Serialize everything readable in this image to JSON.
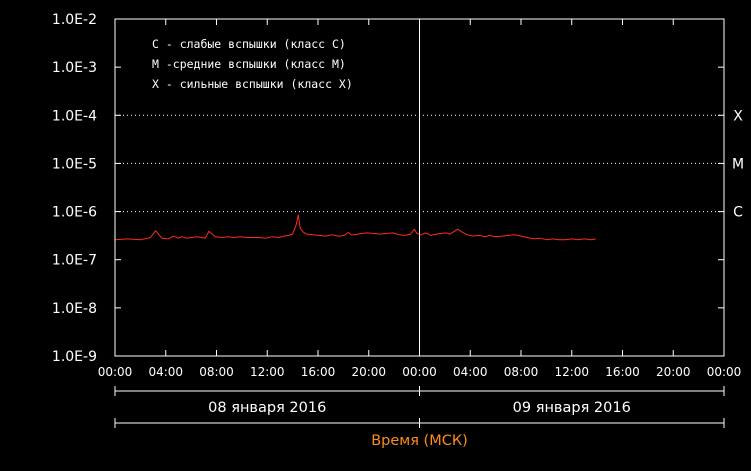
{
  "colors": {
    "background": "#000000",
    "axes": "#ffffff",
    "series": "#ff2a1a",
    "xlabel": "#ff8c1a"
  },
  "chart_data": {
    "type": "line",
    "title": "",
    "xlabel": "Время (МСК)",
    "ylabel": "",
    "y_scale": "log",
    "ylim": [
      "1.0E-9",
      "1.0E-2"
    ],
    "y_ticks": [
      "1.0E-2",
      "1.0E-3",
      "1.0E-4",
      "1.0E-5",
      "1.0E-6",
      "1.0E-7",
      "1.0E-8",
      "1.0E-9"
    ],
    "x_ticks": [
      "00:00",
      "04:00",
      "08:00",
      "12:00",
      "16:00",
      "20:00",
      "00:00",
      "04:00",
      "08:00",
      "12:00",
      "16:00",
      "20:00",
      "00:00"
    ],
    "x_range_hours": [
      0,
      48
    ],
    "days": [
      {
        "label": "08 января 2016",
        "start_hour": 0,
        "end_hour": 24
      },
      {
        "label": "09 января 2016",
        "start_hour": 24,
        "end_hour": 48
      }
    ],
    "divider_hour": 24,
    "class_lines": [
      {
        "label": "X",
        "value": 0.0001
      },
      {
        "label": "M",
        "value": 1e-05
      },
      {
        "label": "C",
        "value": 1e-06
      }
    ],
    "legend": {
      "placement": "top-left",
      "entries": [
        "C - слабые вспышки (класс C)",
        "M -средние вспышки (класс M)",
        "X - сильные вспышки (класс X)"
      ]
    },
    "series": [
      {
        "x": [
          0,
          1,
          2,
          2.8,
          3.2,
          3.7,
          4.2,
          4.6,
          5,
          5.3,
          5.6,
          6,
          6.5,
          7.1,
          7.4,
          7.9,
          8.4,
          8.9,
          9.4,
          9.9,
          10.4,
          10.9,
          11.4,
          11.9,
          12.4,
          12.9,
          13.3,
          13.7,
          14,
          14.25,
          14.45,
          14.6,
          14.8,
          15.1,
          15.6,
          16.1,
          16.6,
          17.1,
          17.6,
          18.1,
          18.4,
          18.6,
          18.9,
          19.4,
          19.9,
          20.4,
          20.9,
          21.4,
          21.9,
          22.4,
          22.9,
          23.3,
          23.6,
          23.8,
          24.1,
          24.5,
          24.9,
          25.3,
          25.7,
          26.1,
          26.4,
          26.7,
          27,
          27.4,
          27.8,
          28.2,
          28.7,
          29.2,
          29.5,
          29.9,
          30.5,
          31,
          31.5,
          32,
          32.5,
          33,
          33.5,
          34,
          34.5,
          35,
          35.5,
          36,
          36.5,
          37,
          37.5,
          37.9
        ],
        "values": [
          2.6e-07,
          2.7e-07,
          2.6e-07,
          2.9e-07,
          4e-07,
          2.8e-07,
          2.7e-07,
          3.1e-07,
          2.8e-07,
          3e-07,
          2.8e-07,
          2.9e-07,
          3e-07,
          2.8e-07,
          3.9e-07,
          3e-07,
          2.9e-07,
          3e-07,
          2.9e-07,
          3e-07,
          2.9e-07,
          2.9e-07,
          2.9e-07,
          2.8e-07,
          3e-07,
          2.9e-07,
          3.1e-07,
          3.2e-07,
          3.4e-07,
          5e-07,
          8.5e-07,
          4.5e-07,
          3.8e-07,
          3.4e-07,
          3.3e-07,
          3.2e-07,
          3.1e-07,
          3.3e-07,
          3.1e-07,
          3.2e-07,
          3.7e-07,
          3.3e-07,
          3.3e-07,
          3.5e-07,
          3.6e-07,
          3.5e-07,
          3.4e-07,
          3.5e-07,
          3.6e-07,
          3.3e-07,
          3.2e-07,
          3.4e-07,
          4.3e-07,
          3.5e-07,
          3.3e-07,
          3.6e-07,
          3.2e-07,
          3.4e-07,
          3.5e-07,
          3.6e-07,
          3.4e-07,
          3.8e-07,
          4.3e-07,
          3.7e-07,
          3.3e-07,
          3.1e-07,
          3.2e-07,
          3e-07,
          3.2e-07,
          3e-07,
          3.1e-07,
          3.2e-07,
          3.3e-07,
          3.1e-07,
          2.9e-07,
          2.7e-07,
          2.8e-07,
          2.6e-07,
          2.7e-07,
          2.6e-07,
          2.6e-07,
          2.7e-07,
          2.6e-07,
          2.7e-07,
          2.6e-07,
          2.7e-07
        ]
      }
    ]
  }
}
